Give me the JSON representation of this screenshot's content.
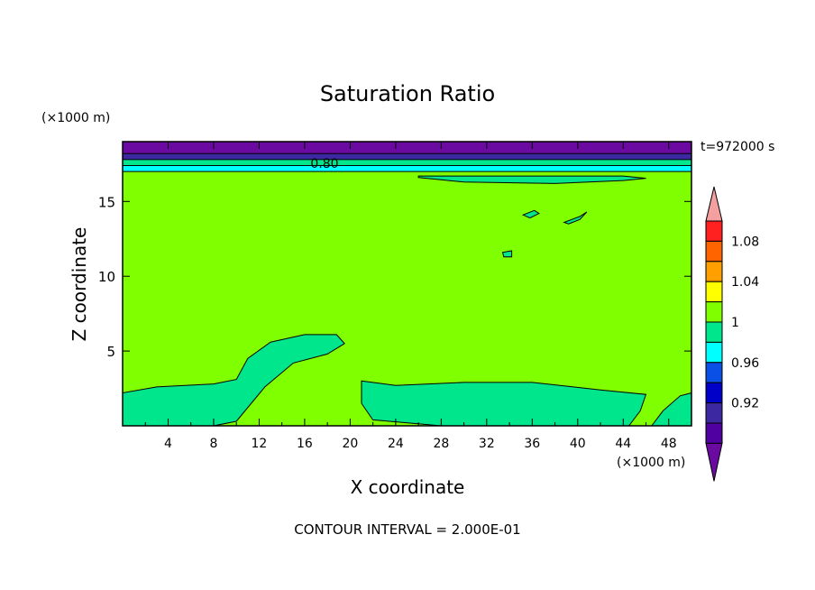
{
  "chart_data": {
    "type": "heatmap",
    "title": "Saturation Ratio",
    "xlabel": "X coordinate",
    "ylabel": "Z coordinate",
    "x_unit": "(×1000 m)",
    "y_unit": "(×1000 m)",
    "time_label": "t=972000 s",
    "footer": "CONTOUR INTERVAL = 2.000E-01",
    "contour_label": "0.80",
    "xlim": [
      0,
      50
    ],
    "ylim": [
      0,
      19
    ],
    "x_ticks": [
      "4",
      "8",
      "12",
      "16",
      "20",
      "24",
      "28",
      "32",
      "36",
      "40",
      "44",
      "48"
    ],
    "y_ticks": [
      "5",
      "10",
      "15"
    ],
    "background_level_color": "#80ff00",
    "colorbar": {
      "levels": [
        {
          "color": "#5000a0"
        },
        {
          "color": "#3c28a0"
        },
        {
          "color": "#0000c8"
        },
        {
          "color": "#0a50e6"
        },
        {
          "color": "#00ffff"
        },
        {
          "color": "#00e68c"
        },
        {
          "color": "#80ff00"
        },
        {
          "color": "#ffff00"
        },
        {
          "color": "#ffa000"
        },
        {
          "color": "#ff6400"
        },
        {
          "color": "#ff2020"
        }
      ],
      "over_color": "#f5a0a0",
      "under_color": "#6a0aa0",
      "labels": [
        "0.92",
        "0.96",
        "1",
        "1.04",
        "1.08"
      ]
    },
    "bands": [
      {
        "z_from": 17.0,
        "z_to": 17.4,
        "color": "#00ffff"
      },
      {
        "z_from": 17.4,
        "z_to": 17.8,
        "color": "#00e68c"
      },
      {
        "z_from": 17.8,
        "z_to": 18.2,
        "color": "#3c28a0"
      },
      {
        "z_from": 18.2,
        "z_to": 19.0,
        "color": "#6a0aa0"
      }
    ],
    "regions": [
      {
        "name": "moist-region-left",
        "color": "#00e68c",
        "points": [
          [
            0,
            0
          ],
          [
            0,
            2.2
          ],
          [
            3,
            2.6
          ],
          [
            8,
            2.8
          ],
          [
            10,
            3.1
          ],
          [
            11,
            4.5
          ],
          [
            13,
            5.6
          ],
          [
            16,
            6.1
          ],
          [
            18.8,
            6.1
          ],
          [
            19.5,
            5.5
          ],
          [
            18,
            4.8
          ],
          [
            15,
            4.2
          ],
          [
            12.5,
            2.6
          ],
          [
            10,
            0.3
          ],
          [
            8,
            0
          ],
          [
            0,
            0
          ]
        ]
      },
      {
        "name": "moist-region-center",
        "color": "#00e68c",
        "points": [
          [
            21,
            3
          ],
          [
            24,
            2.7
          ],
          [
            30,
            2.9
          ],
          [
            36,
            2.9
          ],
          [
            42,
            2.4
          ],
          [
            46,
            2.1
          ],
          [
            45.5,
            1.0
          ],
          [
            44.5,
            0
          ],
          [
            28,
            0
          ],
          [
            22,
            0.4
          ],
          [
            21,
            1.5
          ],
          [
            21,
            3
          ]
        ]
      },
      {
        "name": "moist-region-right",
        "color": "#00e68c",
        "points": [
          [
            46.5,
            0
          ],
          [
            47.5,
            1.0
          ],
          [
            49,
            2.0
          ],
          [
            50,
            2.2
          ],
          [
            50,
            0
          ],
          [
            46.5,
            0
          ]
        ]
      },
      {
        "name": "moist-strip-top",
        "color": "#00e68c",
        "points": [
          [
            26,
            16.6
          ],
          [
            30,
            16.3
          ],
          [
            38,
            16.2
          ],
          [
            44,
            16.4
          ],
          [
            46,
            16.55
          ],
          [
            44,
            16.7
          ],
          [
            26,
            16.7
          ]
        ]
      },
      {
        "name": "moist-blob-1",
        "color": "#00e68c",
        "points": [
          [
            35.2,
            14.1
          ],
          [
            36.2,
            14.4
          ],
          [
            36.6,
            14.2
          ],
          [
            35.8,
            13.9
          ]
        ]
      },
      {
        "name": "moist-blob-2",
        "color": "#00e68c",
        "points": [
          [
            38.8,
            13.6
          ],
          [
            40.2,
            14.0
          ],
          [
            40.8,
            14.3
          ],
          [
            40.2,
            13.8
          ],
          [
            39.2,
            13.5
          ]
        ]
      },
      {
        "name": "moist-blob-3",
        "color": "#00e68c",
        "points": [
          [
            33.4,
            11.6
          ],
          [
            34.2,
            11.7
          ],
          [
            34.2,
            11.3
          ],
          [
            33.5,
            11.3
          ]
        ]
      }
    ]
  }
}
